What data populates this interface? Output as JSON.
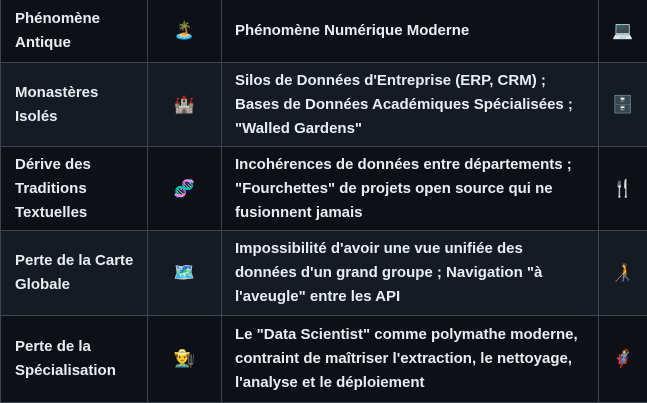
{
  "rows": [
    {
      "ancient": "Phénomène Antique",
      "ancient_icon": "🏝️",
      "modern": "Phénomène Numérique Moderne",
      "modern_icon": "💻"
    },
    {
      "ancient": "Monastères Isolés",
      "ancient_icon": "🏰",
      "modern": "Silos de Données d'Entreprise (ERP, CRM) ; Bases de Données Académiques Spécialisées ; \"Walled Gardens\"",
      "modern_icon": "🗄️"
    },
    {
      "ancient": "Dérive des Traditions Textuelles",
      "ancient_icon": "🧬",
      "modern": "Incohérences de données entre départements ; \"Fourchettes\" de projets open source qui ne fusionnent jamais",
      "modern_icon": "🍴"
    },
    {
      "ancient": "Perte de la Carte Globale",
      "ancient_icon": "🗺️",
      "modern": "Impossibilité d'avoir une vue unifiée des données d'un grand groupe ; Navigation \"à l'aveugle\" entre les API",
      "modern_icon": "🧑‍🦯"
    },
    {
      "ancient": "Perte de la Spécialisation",
      "ancient_icon": "👨‍🌾",
      "modern": "Le \"Data Scientist\" comme polymathe moderne, contraint de maîtriser l'extraction, le nettoyage, l'analyse et le déploiement",
      "modern_icon": "🦸"
    }
  ]
}
